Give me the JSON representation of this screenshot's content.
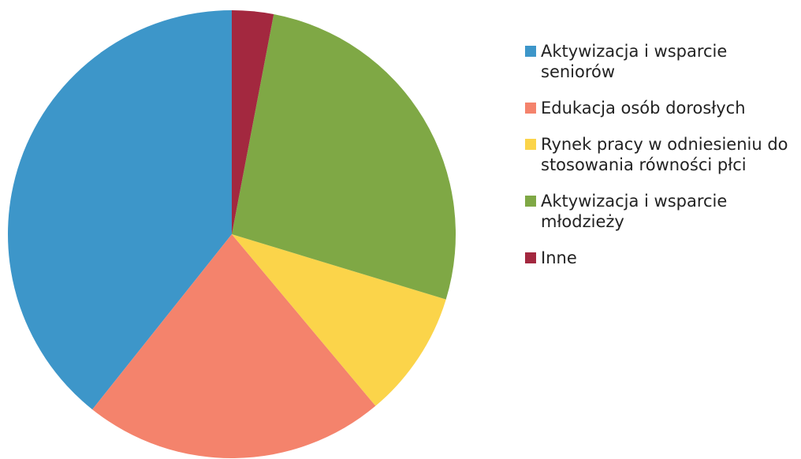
{
  "chart_data": {
    "type": "pie",
    "categories": [
      "Aktywizacja i wsparcie seniorów",
      "Edukacja osób dorosłych",
      "Rynek pracy w odniesieniu do stosowania równości płci",
      "Aktywizacja i wsparcie młodzieży",
      "Inne"
    ],
    "values": [
      39.3,
      21.8,
      9.2,
      26.7,
      3.0
    ],
    "colors": [
      "#3d96c9",
      "#f4836c",
      "#fbd44a",
      "#7fa845",
      "#a3283f"
    ],
    "legend": "right"
  }
}
